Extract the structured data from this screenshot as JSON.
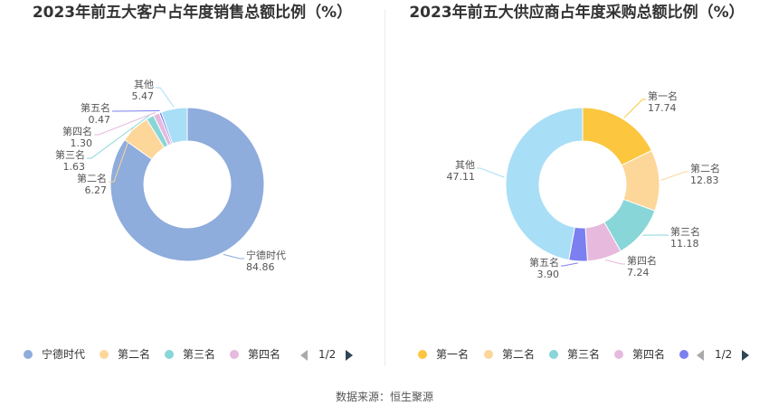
{
  "chart_data": [
    {
      "type": "pie",
      "title": "2023年前五大客户占年度销售总额比例（%）",
      "categories": [
        "宁德时代",
        "第二名",
        "第三名",
        "第四名",
        "第五名",
        "其他"
      ],
      "values": [
        84.86,
        6.27,
        1.63,
        1.3,
        0.47,
        5.47
      ],
      "value_labels": [
        "84.86",
        "6.27",
        "1.63",
        "1.30",
        "0.47",
        "5.47"
      ],
      "colors": [
        "#8eacdc",
        "#fdd699",
        "#88d6d8",
        "#e6b9dd",
        "#7b7ff0",
        "#a8def6"
      ],
      "legend": {
        "position": "bottom",
        "items": [
          "宁德时代",
          "第二名",
          "第三名",
          "第四名"
        ],
        "page": "1/2"
      }
    },
    {
      "type": "pie",
      "title": "2023年前五大供应商占年度采购总额比例（%）",
      "categories": [
        "第一名",
        "第二名",
        "第三名",
        "第四名",
        "第五名",
        "其他"
      ],
      "values": [
        17.74,
        12.83,
        11.18,
        7.24,
        3.9,
        47.11
      ],
      "value_labels": [
        "17.74",
        "12.83",
        "11.18",
        "7.24",
        "3.90",
        "47.11"
      ],
      "colors": [
        "#fcc63f",
        "#fdd699",
        "#88d6d8",
        "#e6b9dd",
        "#7b7ff0",
        "#a8def6"
      ],
      "legend": {
        "position": "bottom",
        "items": [
          "第一名",
          "第二名",
          "第三名",
          "第四名"
        ],
        "page": "1/2"
      }
    }
  ],
  "footer": {
    "source": "数据来源：恒生聚源"
  }
}
